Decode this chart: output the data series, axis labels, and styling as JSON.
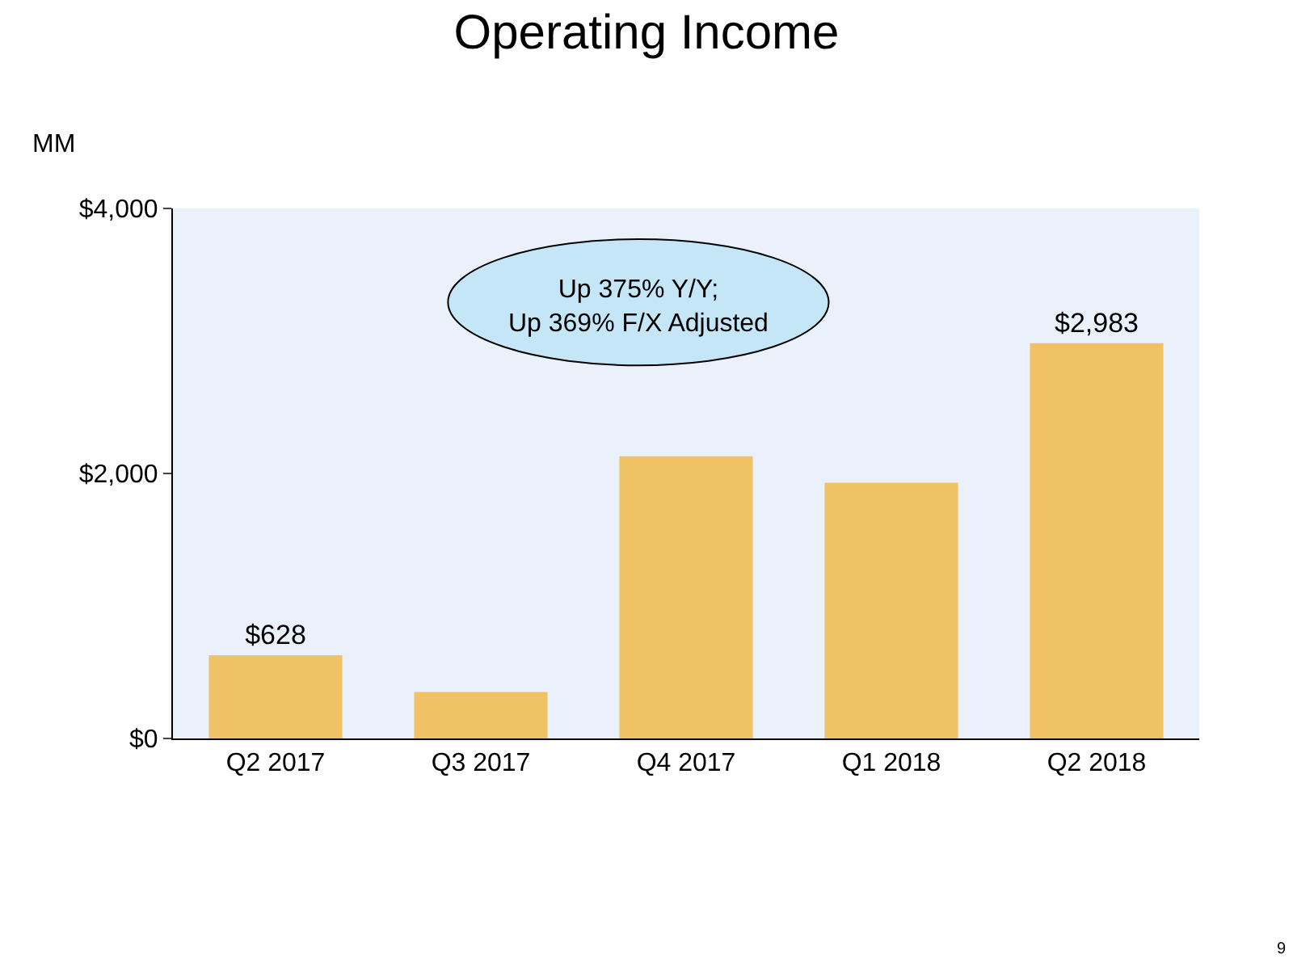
{
  "chart_data": {
    "type": "bar",
    "title": "Operating Income",
    "ylabel": "MM",
    "categories": [
      "Q2 2017",
      "Q3 2017",
      "Q4 2017",
      "Q1 2018",
      "Q2 2018"
    ],
    "values": [
      628,
      350,
      2130,
      1930,
      2983
    ],
    "value_labels": [
      "$628",
      null,
      null,
      null,
      "$2,983"
    ],
    "color": "#f0c266",
    "ylim": [
      0,
      4000
    ],
    "yticks": [
      {
        "value": 0,
        "label": "$0"
      },
      {
        "value": 2000,
        "label": "$2,000"
      },
      {
        "value": 4000,
        "label": "$4,000"
      }
    ],
    "grid": false,
    "annotations": [
      "Up 375% Y/Y;\nUp 369% F/X Adjusted",
      "9"
    ]
  }
}
